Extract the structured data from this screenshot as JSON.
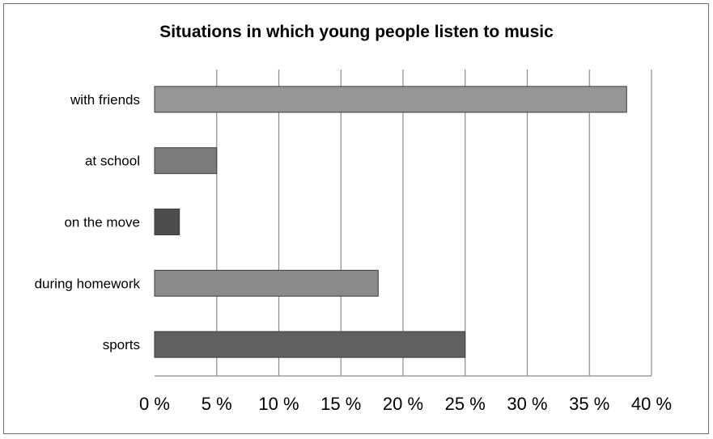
{
  "chart_data": {
    "type": "bar",
    "orientation": "horizontal",
    "title": "Situations in which young people listen to music",
    "categories": [
      "with friends",
      "at school",
      "on the move",
      "during homework",
      "sports"
    ],
    "values": [
      38,
      5,
      2,
      18,
      25
    ],
    "bar_colors": [
      "#969696",
      "#7c7c7c",
      "#4d4d4d",
      "#8a8a8a",
      "#606060"
    ],
    "xlim": [
      0,
      40
    ],
    "x_ticks": [
      0,
      5,
      10,
      15,
      20,
      25,
      30,
      35,
      40
    ],
    "x_tick_labels": [
      "0 %",
      "5 %",
      "10 %",
      "15 %",
      "20 %",
      "25 %",
      "30 %",
      "35 %",
      "40 %"
    ],
    "grid": true,
    "legend": "none"
  }
}
